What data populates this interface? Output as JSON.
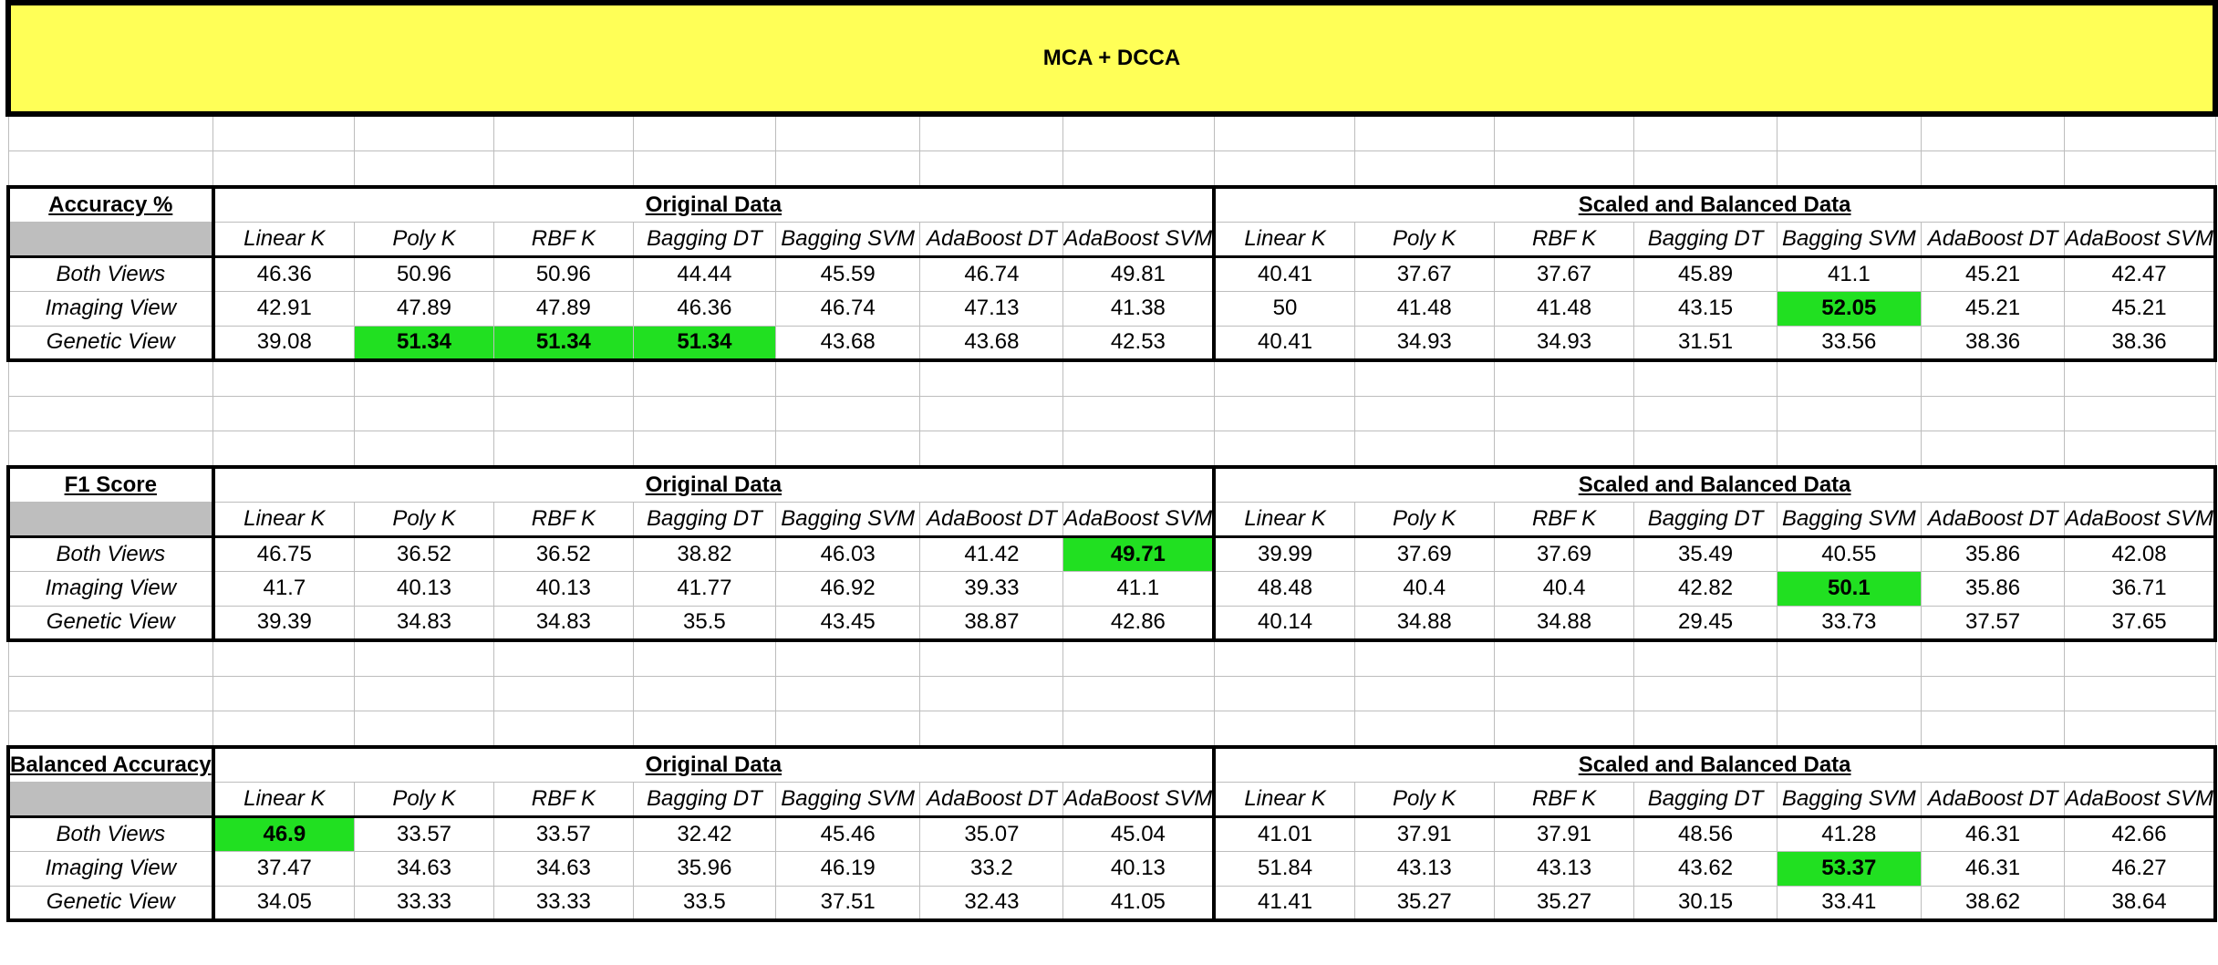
{
  "title": "MCA + DCCA",
  "group_headers": [
    "Original Data",
    "Scaled and Balanced Data"
  ],
  "columns": [
    "Linear K",
    "Poly K",
    "RBF K",
    "Bagging DT",
    "Bagging SVM",
    "AdaBoost DT",
    "AdaBoost SVM",
    "Linear K",
    "Poly K",
    "RBF K",
    "Bagging DT",
    "Bagging SVM",
    "AdaBoost DT",
    "AdaBoost SVM"
  ],
  "highlight_color": "#21e021",
  "sections": [
    {
      "label": "Accuracy %",
      "rows": [
        {
          "label": "Both Views",
          "values": [
            "46.36",
            "50.96",
            "50.96",
            "44.44",
            "45.59",
            "46.74",
            "49.81",
            "40.41",
            "37.67",
            "37.67",
            "45.89",
            "41.1",
            "45.21",
            "42.47"
          ],
          "highlight": []
        },
        {
          "label": "Imaging View",
          "values": [
            "42.91",
            "47.89",
            "47.89",
            "46.36",
            "46.74",
            "47.13",
            "41.38",
            "50",
            "41.48",
            "41.48",
            "43.15",
            "52.05",
            "45.21",
            "45.21"
          ],
          "highlight": [
            11
          ]
        },
        {
          "label": "Genetic View",
          "values": [
            "39.08",
            "51.34",
            "51.34",
            "51.34",
            "43.68",
            "43.68",
            "42.53",
            "40.41",
            "34.93",
            "34.93",
            "31.51",
            "33.56",
            "38.36",
            "38.36"
          ],
          "highlight": [
            1,
            2,
            3
          ]
        }
      ]
    },
    {
      "label": "F1 Score",
      "rows": [
        {
          "label": "Both Views",
          "values": [
            "46.75",
            "36.52",
            "36.52",
            "38.82",
            "46.03",
            "41.42",
            "49.71",
            "39.99",
            "37.69",
            "37.69",
            "35.49",
            "40.55",
            "35.86",
            "42.08"
          ],
          "highlight": [
            6
          ]
        },
        {
          "label": "Imaging View",
          "values": [
            "41.7",
            "40.13",
            "40.13",
            "41.77",
            "46.92",
            "39.33",
            "41.1",
            "48.48",
            "40.4",
            "40.4",
            "42.82",
            "50.1",
            "35.86",
            "36.71"
          ],
          "highlight": [
            11
          ]
        },
        {
          "label": "Genetic View",
          "values": [
            "39.39",
            "34.83",
            "34.83",
            "35.5",
            "43.45",
            "38.87",
            "42.86",
            "40.14",
            "34.88",
            "34.88",
            "29.45",
            "33.73",
            "37.57",
            "37.65"
          ],
          "highlight": []
        }
      ]
    },
    {
      "label": "Balanced Accuracy",
      "rows": [
        {
          "label": "Both Views",
          "values": [
            "46.9",
            "33.57",
            "33.57",
            "32.42",
            "45.46",
            "35.07",
            "45.04",
            "41.01",
            "37.91",
            "37.91",
            "48.56",
            "41.28",
            "46.31",
            "42.66"
          ],
          "highlight": [
            0
          ]
        },
        {
          "label": "Imaging View",
          "values": [
            "37.47",
            "34.63",
            "34.63",
            "35.96",
            "46.19",
            "33.2",
            "40.13",
            "51.84",
            "43.13",
            "43.13",
            "43.62",
            "53.37",
            "46.31",
            "46.27"
          ],
          "highlight": [
            11
          ]
        },
        {
          "label": "Genetic View",
          "values": [
            "34.05",
            "33.33",
            "33.33",
            "33.5",
            "37.51",
            "32.43",
            "41.05",
            "41.41",
            "35.27",
            "35.27",
            "30.15",
            "33.41",
            "38.62",
            "38.64"
          ],
          "highlight": []
        }
      ]
    }
  ]
}
